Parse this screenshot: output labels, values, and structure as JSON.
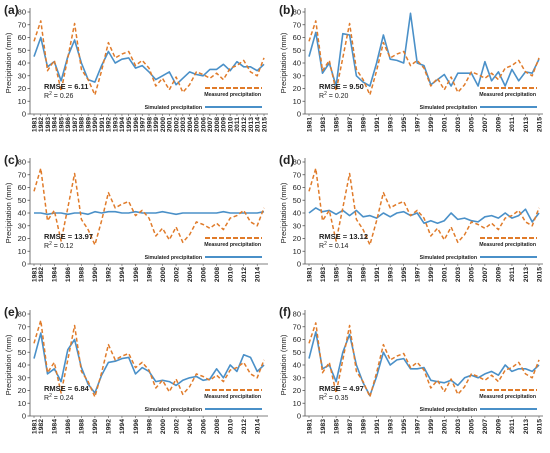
{
  "chart_data": [
    {
      "type": "line",
      "panel_label": "(a)",
      "ylabel": "Precipitation (mm)",
      "ylim": [
        0,
        80
      ],
      "yticks": [
        0,
        10,
        20,
        30,
        40,
        50,
        60,
        70,
        80
      ],
      "x": [
        "1981",
        "1982",
        "1983",
        "1984",
        "1985",
        "1986",
        "1987",
        "1988",
        "1989",
        "1990",
        "1991",
        "1992",
        "1993",
        "1994",
        "1995",
        "1996",
        "1997",
        "1998",
        "1999",
        "2000",
        "2001",
        "2002",
        "2003",
        "2004",
        "2005",
        "2006",
        "2007",
        "2008",
        "2009",
        "2010",
        "2011",
        "2012",
        "2013",
        "2014",
        "2015"
      ],
      "x_tick_labels": [
        "1981",
        "1982",
        "1983",
        "1984",
        "1985",
        "1986",
        "1987",
        "1988",
        "1989",
        "1990",
        "1991",
        "1992",
        "1993",
        "1994",
        "1995",
        "1996",
        "1997",
        "1998",
        "1999",
        "2000",
        "2001",
        "2002",
        "2003",
        "2004",
        "2005",
        "2006",
        "2007",
        "2008",
        "2009",
        "2010",
        "2011",
        "2012",
        "2013",
        "2014",
        "2015"
      ],
      "series": [
        {
          "name": "Measured precipitation",
          "color": "#e07b2a",
          "dash": true,
          "values": [
            57,
            73,
            34,
            42,
            18,
            44,
            71,
            35,
            27,
            15,
            34,
            56,
            44,
            47,
            49,
            38,
            42,
            36,
            22,
            28,
            19,
            29,
            17,
            23,
            33,
            31,
            28,
            32,
            27,
            36,
            38,
            42,
            33,
            30,
            44
          ]
        },
        {
          "name": "Simulated precipitation",
          "color": "#4a90c8",
          "dash": false,
          "values": [
            45,
            60,
            37,
            41,
            26,
            45,
            58,
            40,
            27,
            25,
            38,
            49,
            40,
            43,
            44,
            36,
            38,
            33,
            27,
            30,
            33,
            23,
            28,
            33,
            31,
            30,
            35,
            35,
            39,
            34,
            41,
            37,
            37,
            34,
            39
          ]
        }
      ],
      "annotations": {
        "rmse": "RMSE = 6.11",
        "r2": "R",
        "r2_sup": "2",
        "r2_val": " = 0.26"
      }
    },
    {
      "type": "line",
      "panel_label": "(b)",
      "ylabel": "Precipitation (mm)",
      "ylim": [
        0,
        80
      ],
      "yticks": [
        0,
        10,
        20,
        30,
        40,
        50,
        60,
        70,
        80
      ],
      "x": [
        "1981",
        "1982",
        "1983",
        "1984",
        "1985",
        "1986",
        "1987",
        "1988",
        "1989",
        "1990",
        "1991",
        "1992",
        "1993",
        "1994",
        "1995",
        "1996",
        "1997",
        "1998",
        "1999",
        "2000",
        "2001",
        "2002",
        "2003",
        "2004",
        "2005",
        "2006",
        "2007",
        "2008",
        "2009",
        "2010",
        "2011",
        "2012",
        "2013",
        "2014",
        "2015"
      ],
      "x_tick_labels": [
        "1981",
        "1983",
        "1985",
        "1987",
        "1989",
        "1991",
        "1993",
        "1995",
        "1997",
        "1999",
        "2001",
        "2003",
        "2005",
        "2007",
        "2009",
        "2011",
        "2013",
        "2015"
      ],
      "series": [
        {
          "name": "Measured precipitation",
          "color": "#e07b2a",
          "dash": true,
          "values": [
            57,
            73,
            34,
            42,
            18,
            44,
            71,
            35,
            27,
            15,
            34,
            56,
            44,
            47,
            49,
            38,
            42,
            36,
            22,
            28,
            19,
            29,
            17,
            23,
            33,
            31,
            28,
            32,
            27,
            36,
            38,
            42,
            33,
            30,
            44
          ]
        },
        {
          "name": "Simulated precipitation",
          "color": "#4a90c8",
          "dash": false,
          "values": [
            45,
            64,
            32,
            40,
            22,
            63,
            62,
            30,
            25,
            22,
            40,
            62,
            43,
            42,
            40,
            79,
            40,
            38,
            23,
            27,
            31,
            22,
            32,
            32,
            32,
            22,
            41,
            26,
            33,
            22,
            35,
            26,
            33,
            32,
            43
          ]
        }
      ],
      "annotations": {
        "rmse": "RMSE = 9.50",
        "r2": "R",
        "r2_sup": "2",
        "r2_val": " = 0.20"
      }
    },
    {
      "type": "line",
      "panel_label": "(c)",
      "ylabel": "Precipitation (mm)",
      "ylim": [
        0,
        80
      ],
      "yticks": [
        0,
        10,
        20,
        30,
        40,
        50,
        60,
        70,
        80
      ],
      "x": [
        "1981",
        "1982",
        "1983",
        "1984",
        "1985",
        "1986",
        "1987",
        "1988",
        "1989",
        "1990",
        "1991",
        "1992",
        "1993",
        "1994",
        "1995",
        "1996",
        "1997",
        "1998",
        "1999",
        "2000",
        "2001",
        "2002",
        "2003",
        "2004",
        "2005",
        "2006",
        "2007",
        "2008",
        "2009",
        "2010",
        "2011",
        "2012",
        "2013",
        "2014",
        "2015"
      ],
      "x_tick_labels": [
        "1981",
        "1982",
        "1984",
        "1986",
        "1988",
        "1990",
        "1992",
        "1994",
        "1996",
        "1998",
        "2000",
        "2002",
        "2004",
        "2006",
        "2008",
        "2010",
        "2012",
        "2014"
      ],
      "series": [
        {
          "name": "Measured precipitation",
          "color": "#e07b2a",
          "dash": true,
          "values": [
            57,
            75,
            34,
            42,
            18,
            44,
            71,
            35,
            27,
            15,
            34,
            56,
            44,
            47,
            49,
            38,
            42,
            36,
            22,
            28,
            19,
            29,
            17,
            23,
            33,
            31,
            28,
            32,
            27,
            36,
            38,
            42,
            33,
            30,
            44
          ]
        },
        {
          "name": "Simulated precipitation",
          "color": "#4a90c8",
          "dash": false,
          "values": [
            40,
            40,
            39,
            40,
            40,
            39,
            40,
            40,
            39,
            41,
            40,
            41,
            41,
            40,
            40,
            41,
            40,
            40,
            40,
            41,
            40,
            39,
            40,
            40,
            40,
            40,
            40,
            40,
            41,
            40,
            40,
            40,
            40,
            40,
            41
          ]
        }
      ],
      "annotations": {
        "rmse": "RMSE = 13.97",
        "r2": "R",
        "r2_sup": "2",
        "r2_val": " = 0.12"
      }
    },
    {
      "type": "line",
      "panel_label": "(d)",
      "ylabel": "Precipitation (mm)",
      "ylim": [
        0,
        80
      ],
      "yticks": [
        0,
        10,
        20,
        30,
        40,
        50,
        60,
        70,
        80
      ],
      "x": [
        "1981",
        "1982",
        "1983",
        "1984",
        "1985",
        "1986",
        "1987",
        "1988",
        "1989",
        "1990",
        "1991",
        "1992",
        "1993",
        "1994",
        "1995",
        "1996",
        "1997",
        "1998",
        "1999",
        "2000",
        "2001",
        "2002",
        "2003",
        "2004",
        "2005",
        "2006",
        "2007",
        "2008",
        "2009",
        "2010",
        "2011",
        "2012",
        "2013",
        "2014",
        "2015"
      ],
      "x_tick_labels": [
        "1981",
        "1983",
        "1985",
        "1987",
        "1989",
        "1991",
        "1993",
        "1995",
        "1997",
        "1999",
        "2001",
        "2003",
        "2005",
        "2007",
        "2009",
        "2011",
        "2013",
        "2015"
      ],
      "series": [
        {
          "name": "Measured precipitation",
          "color": "#e07b2a",
          "dash": true,
          "values": [
            57,
            75,
            34,
            42,
            18,
            44,
            71,
            35,
            27,
            15,
            34,
            56,
            44,
            47,
            49,
            38,
            42,
            36,
            22,
            28,
            19,
            29,
            17,
            23,
            33,
            31,
            28,
            32,
            27,
            36,
            38,
            42,
            33,
            30,
            44
          ]
        },
        {
          "name": "Simulated precipitation",
          "color": "#4a90c8",
          "dash": false,
          "values": [
            40,
            44,
            41,
            42,
            39,
            42,
            38,
            42,
            37,
            38,
            36,
            40,
            37,
            40,
            41,
            38,
            40,
            32,
            34,
            32,
            34,
            40,
            35,
            36,
            34,
            33,
            37,
            38,
            36,
            40,
            36,
            38,
            43,
            33,
            40
          ]
        }
      ],
      "annotations": {
        "rmse": "RMSE = 13.12",
        "r2": "R",
        "r2_sup": "2",
        "r2_val": " = 0.14"
      }
    },
    {
      "type": "line",
      "panel_label": "(e)",
      "ylabel": "Precipitation (mm)",
      "ylim": [
        0,
        80
      ],
      "yticks": [
        0,
        10,
        20,
        30,
        40,
        50,
        60,
        70,
        80
      ],
      "x": [
        "1981",
        "1982",
        "1983",
        "1984",
        "1985",
        "1986",
        "1987",
        "1988",
        "1989",
        "1990",
        "1991",
        "1992",
        "1993",
        "1994",
        "1995",
        "1996",
        "1997",
        "1998",
        "1999",
        "2000",
        "2001",
        "2002",
        "2003",
        "2004",
        "2005",
        "2006",
        "2007",
        "2008",
        "2009",
        "2010",
        "2011",
        "2012",
        "2013",
        "2014",
        "2015"
      ],
      "x_tick_labels": [
        "1981",
        "1982",
        "1984",
        "1986",
        "1988",
        "1990",
        "1992",
        "1994",
        "1996",
        "1998",
        "2000",
        "2002",
        "2004",
        "2006",
        "2008",
        "2010",
        "2012",
        "2014"
      ],
      "series": [
        {
          "name": "Measured precipitation",
          "color": "#e07b2a",
          "dash": true,
          "values": [
            57,
            75,
            34,
            42,
            18,
            44,
            71,
            35,
            27,
            15,
            34,
            56,
            44,
            47,
            49,
            38,
            42,
            36,
            22,
            28,
            19,
            29,
            17,
            23,
            33,
            31,
            28,
            32,
            27,
            36,
            38,
            42,
            33,
            30,
            44
          ]
        },
        {
          "name": "Simulated precipitation",
          "color": "#4a90c8",
          "dash": false,
          "values": [
            45,
            65,
            33,
            37,
            27,
            52,
            60,
            38,
            25,
            18,
            32,
            42,
            43,
            45,
            46,
            33,
            38,
            35,
            27,
            28,
            27,
            24,
            28,
            30,
            31,
            28,
            29,
            37,
            30,
            40,
            35,
            48,
            46,
            35,
            40
          ]
        }
      ],
      "annotations": {
        "rmse": "RMSE = 6.84",
        "r2": "R",
        "r2_sup": "2",
        "r2_val": " = 0.24"
      }
    },
    {
      "type": "line",
      "panel_label": "(f)",
      "ylabel": "Precipitation (mm)",
      "ylim": [
        0,
        80
      ],
      "yticks": [
        0,
        10,
        20,
        30,
        40,
        50,
        60,
        70,
        80
      ],
      "x": [
        "1981",
        "1982",
        "1983",
        "1984",
        "1985",
        "1986",
        "1987",
        "1988",
        "1989",
        "1990",
        "1991",
        "1992",
        "1993",
        "1994",
        "1995",
        "1996",
        "1997",
        "1998",
        "1999",
        "2000",
        "2001",
        "2002",
        "2003",
        "2004",
        "2005",
        "2006",
        "2007",
        "2008",
        "2009",
        "2010",
        "2011",
        "2012",
        "2013",
        "2014",
        "2015"
      ],
      "x_tick_labels": [
        "1981",
        "1983",
        "1985",
        "1987",
        "1989",
        "1991",
        "1993",
        "1995",
        "1997",
        "1999",
        "2001",
        "2003",
        "2005",
        "2007",
        "2009",
        "2011",
        "2013",
        "2015"
      ],
      "series": [
        {
          "name": "Measured precipitation",
          "color": "#e07b2a",
          "dash": true,
          "values": [
            57,
            73,
            34,
            42,
            18,
            44,
            71,
            35,
            27,
            15,
            34,
            56,
            44,
            47,
            49,
            38,
            42,
            36,
            22,
            28,
            19,
            29,
            17,
            23,
            33,
            31,
            28,
            32,
            27,
            36,
            38,
            42,
            33,
            30,
            44
          ]
        },
        {
          "name": "Simulated precipitation",
          "color": "#4a90c8",
          "dash": false,
          "values": [
            45,
            66,
            37,
            40,
            27,
            50,
            64,
            40,
            26,
            16,
            31,
            50,
            40,
            44,
            45,
            37,
            37,
            38,
            28,
            27,
            26,
            28,
            24,
            30,
            32,
            30,
            33,
            35,
            32,
            40,
            35,
            37,
            37,
            35,
            40
          ]
        }
      ],
      "annotations": {
        "rmse": "RMSE = 4.97",
        "r2": "R",
        "r2_sup": "2",
        "r2_val": " = 0.35"
      }
    }
  ]
}
